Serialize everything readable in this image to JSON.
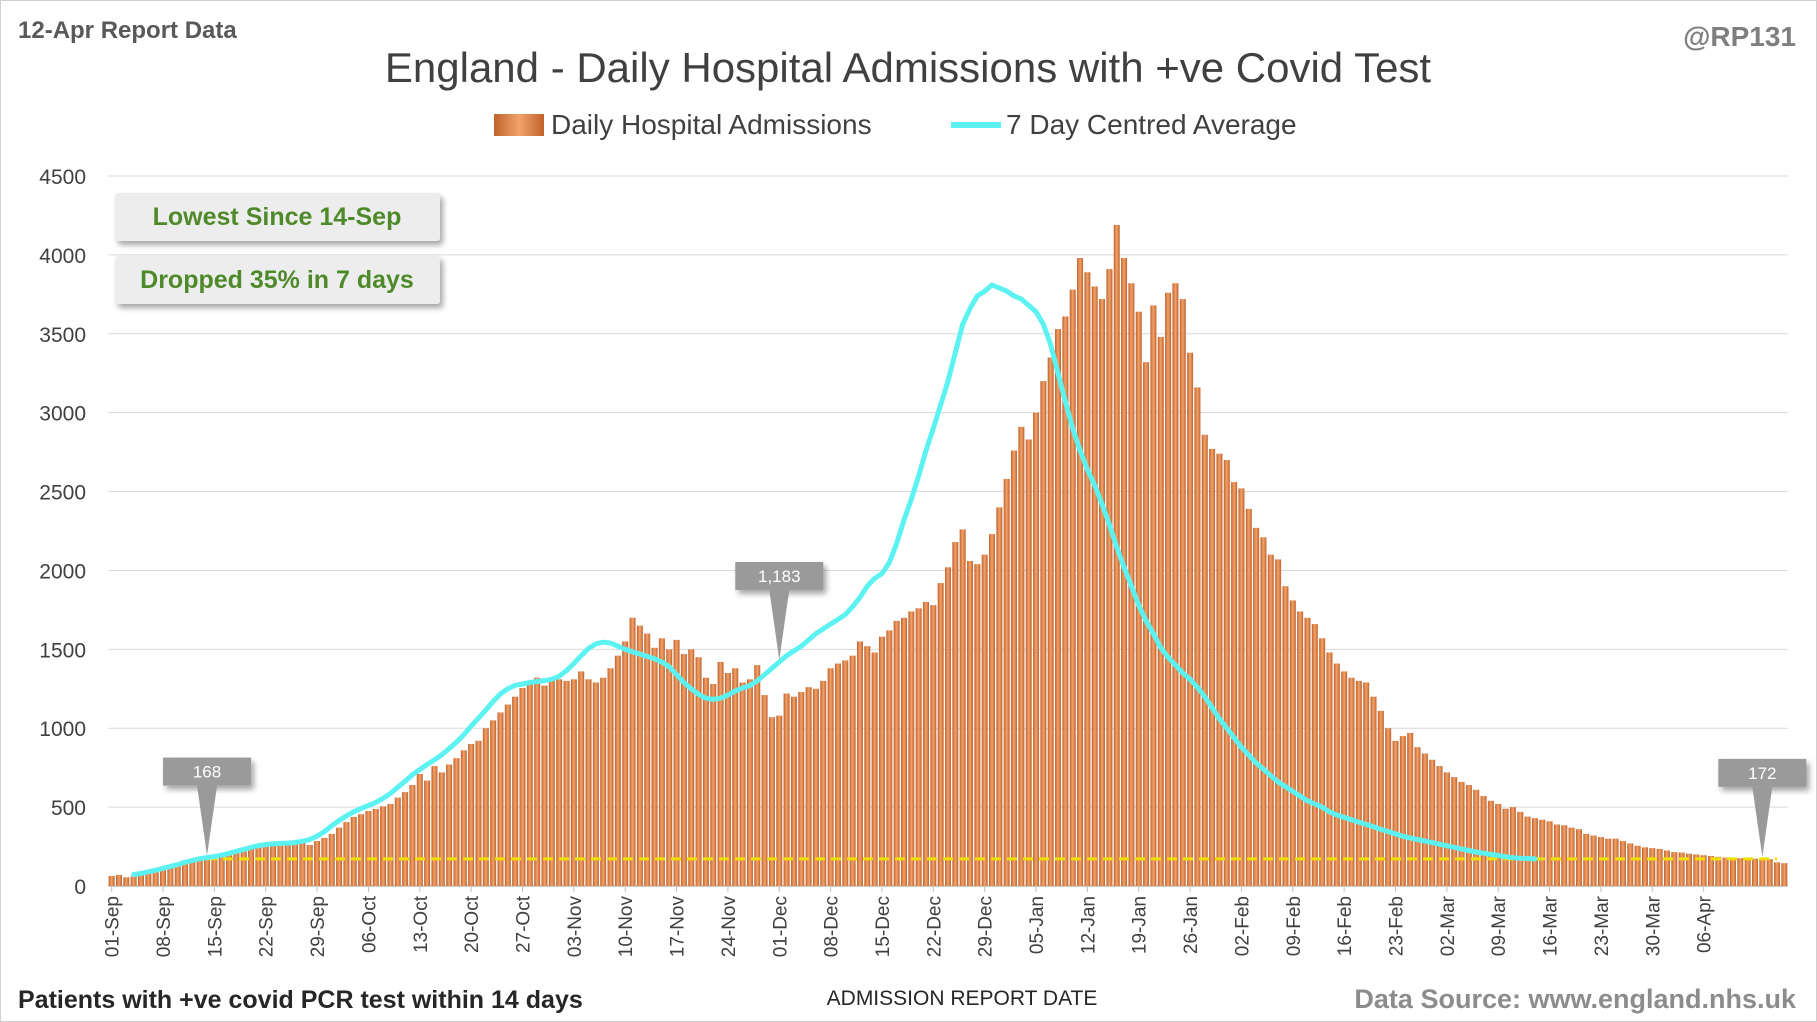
{
  "report_label": "12-Apr Report Data",
  "author": "@RP131",
  "footer": {
    "left_note": "Patients with +ve covid PCR test within 14 days",
    "source": "Data Source: www.england.nhs.uk"
  },
  "colors": {
    "bar": "#c0622b",
    "bar_light": "#f2a36a",
    "line": "#5df2f2",
    "reference_line": "#f0e000",
    "callout": "#9a9a9a",
    "annotation_text": "#4f8a2a",
    "title_text": "#404040",
    "grid": "#d9d9d9"
  },
  "annotations": {
    "lowest_since": "Lowest Since 14-Sep",
    "dropped": "Dropped 35% in 7 days"
  },
  "callouts": [
    {
      "label": "168",
      "date_index": 13
    },
    {
      "label": "1,183",
      "date_index": 91
    },
    {
      "label": "172",
      "date_index": 225
    }
  ],
  "chart_data": {
    "type": "bar",
    "title": "England - Daily Hospital Admissions with +ve Covid Test",
    "xlabel": "ADMISSION REPORT DATE",
    "ylabel": "",
    "ylim": [
      0,
      4500
    ],
    "yticks": [
      0,
      500,
      1000,
      1500,
      2000,
      2500,
      3000,
      3500,
      4000,
      4500
    ],
    "x_start": "01-Sep",
    "x_tick_labels": [
      "01-Sep",
      "08-Sep",
      "15-Sep",
      "22-Sep",
      "29-Sep",
      "06-Oct",
      "13-Oct",
      "20-Oct",
      "27-Oct",
      "03-Nov",
      "10-Nov",
      "17-Nov",
      "24-Nov",
      "01-Dec",
      "08-Dec",
      "15-Dec",
      "22-Dec",
      "29-Dec",
      "05-Jan",
      "12-Jan",
      "19-Jan",
      "26-Jan",
      "02-Feb",
      "09-Feb",
      "16-Feb",
      "23-Feb",
      "02-Mar",
      "09-Mar",
      "16-Mar",
      "23-Mar",
      "30-Mar",
      "06-Apr"
    ],
    "grid": true,
    "legend_position": "top-center",
    "reference_value": 172,
    "series": [
      {
        "name": "Daily Hospital Admissions",
        "type": "bar",
        "values": [
          64,
          70,
          55,
          60,
          75,
          95,
          105,
          110,
          118,
          130,
          145,
          158,
          170,
          168,
          182,
          188,
          195,
          210,
          225,
          235,
          248,
          255,
          272,
          265,
          268,
          278,
          272,
          260,
          285,
          305,
          330,
          370,
          405,
          438,
          455,
          475,
          488,
          505,
          520,
          560,
          595,
          640,
          710,
          668,
          760,
          720,
          770,
          810,
          860,
          900,
          920,
          1000,
          1050,
          1100,
          1150,
          1200,
          1255,
          1290,
          1320,
          1270,
          1320,
          1310,
          1300,
          1310,
          1360,
          1310,
          1290,
          1320,
          1380,
          1460,
          1550,
          1700,
          1650,
          1600,
          1510,
          1570,
          1500,
          1560,
          1470,
          1500,
          1450,
          1320,
          1280,
          1420,
          1350,
          1380,
          1290,
          1310,
          1400,
          1210,
          1070,
          1080,
          1220,
          1200,
          1230,
          1260,
          1250,
          1300,
          1380,
          1410,
          1430,
          1460,
          1550,
          1520,
          1480,
          1580,
          1620,
          1680,
          1700,
          1740,
          1760,
          1800,
          1780,
          1920,
          2020,
          2180,
          2260,
          2060,
          2040,
          2100,
          2230,
          2400,
          2580,
          2760,
          2910,
          2830,
          3000,
          3200,
          3350,
          3530,
          3610,
          3780,
          3980,
          3890,
          3800,
          3720,
          3910,
          4190,
          3980,
          3820,
          3640,
          3320,
          3680,
          3480,
          3760,
          3820,
          3720,
          3380,
          3160,
          2860,
          2770,
          2740,
          2700,
          2560,
          2520,
          2390,
          2270,
          2210,
          2100,
          2070,
          1900,
          1810,
          1740,
          1700,
          1660,
          1570,
          1480,
          1410,
          1360,
          1320,
          1300,
          1290,
          1200,
          1110,
          1000,
          920,
          950,
          970,
          880,
          840,
          800,
          760,
          720,
          690,
          660,
          640,
          610,
          570,
          540,
          520,
          490,
          500,
          470,
          440,
          430,
          420,
          410,
          390,
          385,
          370,
          360,
          330,
          320,
          310,
          300,
          300,
          285,
          270,
          255,
          245,
          240,
          235,
          225,
          215,
          212,
          205,
          200,
          195,
          190,
          185,
          180,
          178,
          176,
          174,
          173,
          172,
          170,
          150,
          145
        ]
      },
      {
        "name": "7 Day Centred Average",
        "type": "line",
        "start_index": 3,
        "values": [
          72,
          80,
          90,
          100,
          112,
          124,
          136,
          150,
          162,
          173,
          180,
          187,
          195,
          207,
          220,
          232,
          245,
          256,
          263,
          267,
          270,
          272,
          276,
          283,
          295,
          316,
          345,
          382,
          415,
          445,
          470,
          492,
          510,
          530,
          556,
          587,
          626,
          664,
          706,
          738,
          770,
          800,
          832,
          870,
          912,
          958,
          1013,
          1065,
          1115,
          1170,
          1218,
          1250,
          1272,
          1280,
          1290,
          1296,
          1302,
          1310,
          1330,
          1365,
          1410,
          1460,
          1505,
          1535,
          1545,
          1540,
          1520,
          1500,
          1485,
          1470,
          1455,
          1440,
          1420,
          1390,
          1340,
          1290,
          1250,
          1215,
          1190,
          1183,
          1190,
          1210,
          1235,
          1255,
          1270,
          1300,
          1340,
          1380,
          1420,
          1460,
          1490,
          1520,
          1560,
          1600,
          1630,
          1660,
          1690,
          1720,
          1770,
          1830,
          1900,
          1950,
          1980,
          2050,
          2170,
          2320,
          2450,
          2600,
          2760,
          2900,
          3050,
          3200,
          3380,
          3560,
          3660,
          3740,
          3770,
          3810,
          3790,
          3770,
          3740,
          3720,
          3680,
          3640,
          3560,
          3430,
          3250,
          3070,
          2900,
          2760,
          2640,
          2540,
          2420,
          2290,
          2150,
          2020,
          1900,
          1780,
          1680,
          1600,
          1510,
          1450,
          1400,
          1350,
          1310,
          1260,
          1200,
          1130,
          1060,
          1000,
          940,
          880,
          830,
          780,
          740,
          700,
          660,
          630,
          600,
          570,
          540,
          520,
          500,
          470,
          450,
          435,
          420,
          405,
          390,
          375,
          360,
          345,
          330,
          315,
          305,
          295,
          285,
          275,
          265,
          255,
          245,
          235,
          225,
          215,
          208,
          200,
          193,
          186,
          180,
          176,
          174,
          172
        ]
      }
    ]
  }
}
